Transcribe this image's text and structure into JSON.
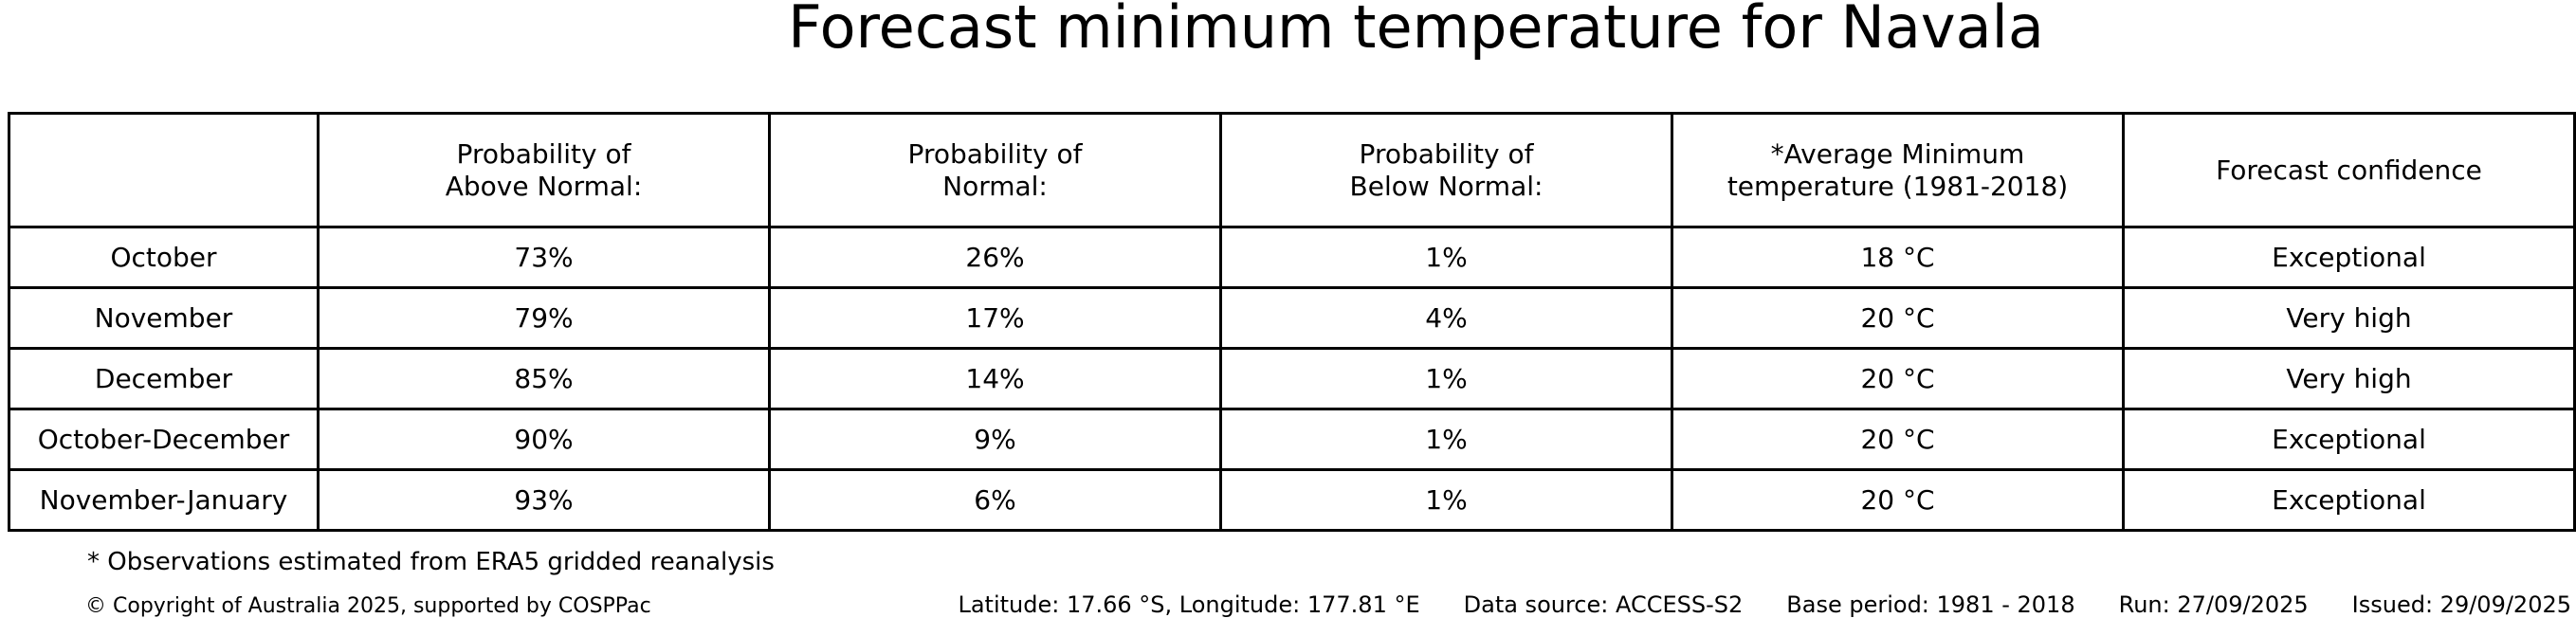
{
  "title": "Forecast minimum temperature for Navala",
  "chart_data": {
    "type": "table",
    "title": "Forecast minimum temperature for Navala",
    "columns": [
      "",
      "Probability of Above Normal:",
      "Probability of Normal:",
      "Probability of Below Normal:",
      "*Average Minimum temperature (1981-2018)",
      "Forecast confidence"
    ],
    "rows": [
      [
        "October",
        "73%",
        "26%",
        "1%",
        "18 °C",
        "Exceptional"
      ],
      [
        "November",
        "79%",
        "17%",
        "4%",
        "20 °C",
        "Very high"
      ],
      [
        "December",
        "85%",
        "14%",
        "1%",
        "20 °C",
        "Very high"
      ],
      [
        "October-December",
        "90%",
        "9%",
        "1%",
        "20 °C",
        "Exceptional"
      ],
      [
        "November-January",
        "93%",
        "6%",
        "1%",
        "20 °C",
        "Exceptional"
      ]
    ]
  },
  "table": {
    "headers": [
      {
        "lines": [
          "Probability of",
          "Above Normal:"
        ]
      },
      {
        "lines": [
          "Probability of",
          "Normal:"
        ]
      },
      {
        "lines": [
          "Probability of",
          "Below Normal:"
        ]
      },
      {
        "lines": [
          "*Average Minimum",
          "temperature (1981-2018)"
        ]
      },
      {
        "lines": [
          "Forecast confidence"
        ]
      }
    ],
    "rows": [
      {
        "period": "October",
        "above": "73%",
        "normal": "26%",
        "below": "1%",
        "avg_min": "18 °C",
        "confidence": "Exceptional"
      },
      {
        "period": "November",
        "above": "79%",
        "normal": "17%",
        "below": "4%",
        "avg_min": "20 °C",
        "confidence": "Very high"
      },
      {
        "period": "December",
        "above": "85%",
        "normal": "14%",
        "below": "1%",
        "avg_min": "20 °C",
        "confidence": "Very high"
      },
      {
        "period": "October-December",
        "above": "90%",
        "normal": "9%",
        "below": "1%",
        "avg_min": "20 °C",
        "confidence": "Exceptional"
      },
      {
        "period": "November-January",
        "above": "93%",
        "normal": "6%",
        "below": "1%",
        "avg_min": "20 °C",
        "confidence": "Exceptional"
      }
    ]
  },
  "footnote": "* Observations estimated from ERA5 gridded reanalysis",
  "footer": {
    "copyright": "© Copyright of Australia 2025, supported by COSPPac",
    "location": "Latitude: 17.66 °S, Longitude: 177.81 °E",
    "data_source": "Data source: ACCESS-S2",
    "base_period": "Base period: 1981 - 2018",
    "run": "Run: 27/09/2025",
    "issued": "Issued: 29/09/2025"
  },
  "colors": {
    "background": "#ffffff",
    "text": "#000000",
    "border": "#000000"
  }
}
